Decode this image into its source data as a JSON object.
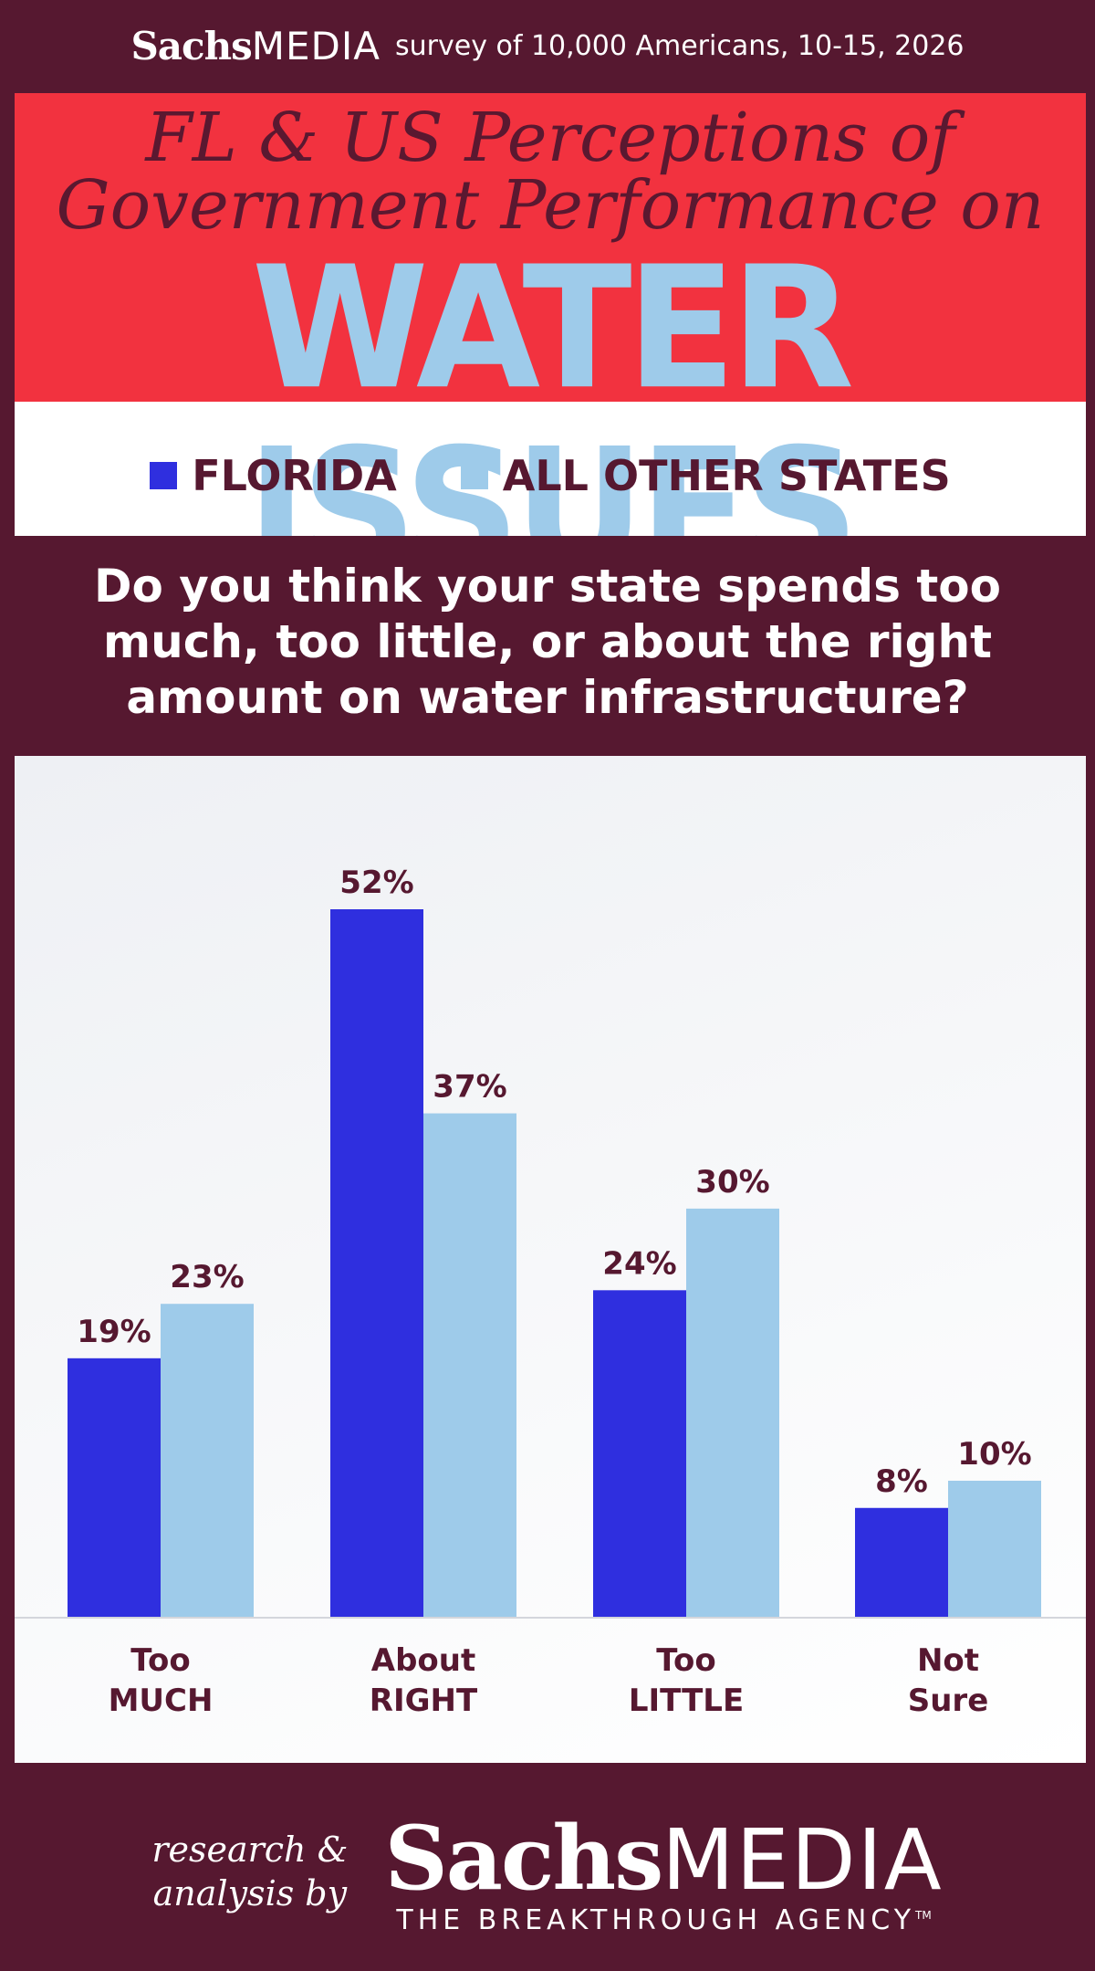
{
  "header": {
    "brand_bold": "Sachs",
    "brand_light": "MEDIA",
    "survey_note": "survey of 10,000 Americans, 10-15, 2026"
  },
  "title": {
    "line1": "FL & US Perceptions of",
    "line2": "Government Performance on",
    "big": "WATER ISSUES"
  },
  "legend": {
    "florida": "FLORIDA",
    "others": "ALL OTHER STATES"
  },
  "question": "Do you think your state spends too much, too little, or about the right amount on water infrastructure?",
  "colors": {
    "background": "#561830",
    "red": "#f2323f",
    "florida": "#2f2fdf",
    "others": "#9ecbea",
    "label": "#561830"
  },
  "chart_data": {
    "type": "bar",
    "categories": [
      "Too MUCH",
      "About RIGHT",
      "Too LITTLE",
      "Not Sure"
    ],
    "category_lines": [
      [
        "Too",
        "MUCH"
      ],
      [
        "About",
        "RIGHT"
      ],
      [
        "Too",
        "LITTLE"
      ],
      [
        "Not",
        "Sure"
      ]
    ],
    "series": [
      {
        "name": "FLORIDA",
        "values": [
          19,
          52,
          24,
          8
        ],
        "labels": [
          "19%",
          "52%",
          "24%",
          "8%"
        ]
      },
      {
        "name": "ALL OTHER STATES",
        "values": [
          23,
          37,
          30,
          10
        ],
        "labels": [
          "23%",
          "37%",
          "30%",
          "10%"
        ]
      }
    ],
    "ylim": [
      0,
      52
    ],
    "grid": false,
    "legend_position": "top"
  },
  "footer": {
    "byline_1": "research &",
    "byline_2": "analysis by",
    "brand_bold": "Sachs",
    "brand_light": "MEDIA",
    "tagline": "THE BREAKTHROUGH AGENCY",
    "tm": "TM"
  }
}
